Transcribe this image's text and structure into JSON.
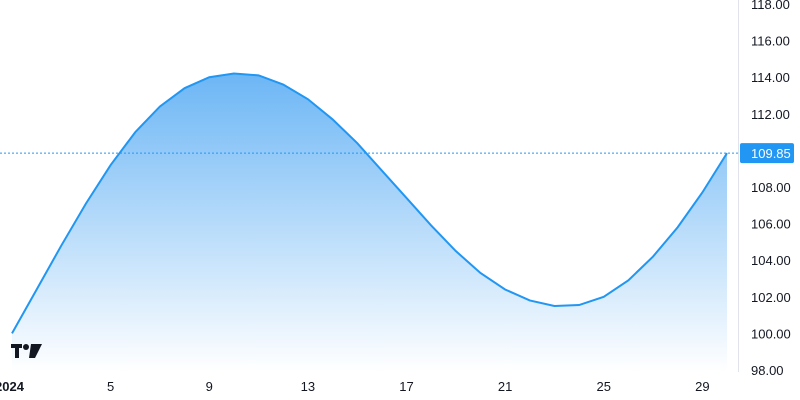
{
  "chart_data": {
    "type": "area",
    "x_start_label": "2024",
    "x_tick_labels": [
      "2024",
      "5",
      "9",
      "13",
      "17",
      "21",
      "25",
      "29"
    ],
    "x_tick_days": [
      1,
      5,
      9,
      13,
      17,
      21,
      25,
      29
    ],
    "x": [
      1,
      2,
      3,
      4,
      5,
      6,
      7,
      8,
      9,
      10,
      11,
      12,
      13,
      14,
      15,
      16,
      17,
      18,
      19,
      20,
      21,
      22,
      23,
      24,
      25,
      26,
      27,
      28,
      29,
      30
    ],
    "values": [
      100.0,
      102.4,
      104.8,
      107.1,
      109.2,
      111.0,
      112.4,
      113.4,
      114.0,
      114.2,
      114.1,
      113.6,
      112.8,
      111.7,
      110.4,
      108.9,
      107.4,
      105.9,
      104.5,
      103.3,
      102.4,
      101.8,
      101.5,
      101.55,
      102.0,
      102.9,
      104.2,
      105.8,
      107.7,
      109.85
    ],
    "y_tick_labels": [
      "98.00",
      "100.00",
      "102.00",
      "104.00",
      "106.00",
      "108.00",
      "110.00",
      "112.00",
      "114.00",
      "116.00",
      "118.00"
    ],
    "ylim": [
      98,
      118
    ],
    "xlim": [
      1,
      30.5
    ],
    "last_value_label": "109.85",
    "last_value": 109.85,
    "colors": {
      "line": "#2196f3",
      "fill_top": "#6cb6f5",
      "fill_bottom": "#ffffff",
      "last_badge": "#2196f3",
      "price_line": "#2196f3",
      "axis": "#e0e3eb"
    },
    "logo_icon": "tradingview-logo-icon"
  }
}
